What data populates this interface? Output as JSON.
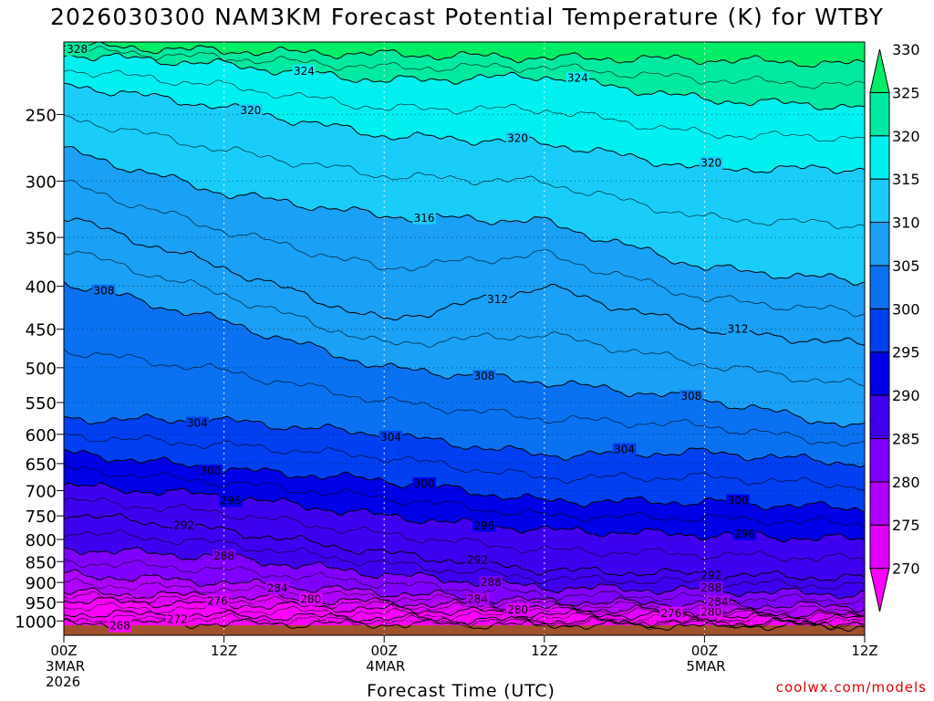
{
  "title": "2026030300 NAM3KM Forecast Potential Temperature (K) for WTBY",
  "credit": "coolwx.com/models",
  "chart_data": {
    "type": "heatmap",
    "title": "2026030300 NAM3KM Forecast Potential Temperature (K) for WTBY",
    "xlabel": "Forecast Time (UTC)",
    "ylabel": "",
    "x_range_hours": [
      0,
      60
    ],
    "x_ticks": [
      {
        "hour": 0,
        "lines": [
          "00Z",
          "3MAR",
          "2026"
        ]
      },
      {
        "hour": 12,
        "lines": [
          "12Z"
        ]
      },
      {
        "hour": 24,
        "lines": [
          "00Z",
          "4MAR"
        ]
      },
      {
        "hour": 36,
        "lines": [
          "12Z"
        ]
      },
      {
        "hour": 48,
        "lines": [
          "00Z",
          "5MAR"
        ]
      },
      {
        "hour": 60,
        "lines": [
          "12Z"
        ]
      }
    ],
    "y_pressure_range_hpa": [
      1040,
      205
    ],
    "y_ticks": [
      250,
      300,
      350,
      400,
      450,
      500,
      550,
      600,
      650,
      700,
      750,
      800,
      850,
      900,
      950,
      1000
    ],
    "colorbar": {
      "levels": [
        270,
        275,
        280,
        285,
        290,
        295,
        300,
        305,
        310,
        315,
        320,
        325,
        330
      ],
      "colors": [
        "#ff00ff",
        "#e000ff",
        "#b000ff",
        "#8000ff",
        "#4000f0",
        "#0000e6",
        "#0040f0",
        "#0a72f0",
        "#1aa0f4",
        "#19cdf8",
        "#00f0f0",
        "#00e9a0",
        "#00ee66"
      ]
    },
    "contour_interval": 4,
    "contours": [
      {
        "value": 268,
        "pressure": [
          1006,
          1007,
          1008,
          1010,
          1012,
          1014
        ],
        "labels": [
          [
            4.2,
            "268"
          ]
        ]
      },
      {
        "value": 272,
        "pressure": [
          980,
          985,
          992,
          1000,
          1005,
          1007
        ],
        "labels": [
          [
            8.5,
            "272"
          ]
        ]
      },
      {
        "value": 276,
        "pressure": [
          946,
          955,
          968,
          980,
          986,
          994
        ],
        "labels": [
          [
            11.5,
            "276"
          ],
          [
            45.5,
            "276"
          ]
        ]
      },
      {
        "value": 280,
        "pressure": [
          925,
          935,
          950,
          965,
          975,
          985
        ],
        "labels": [
          [
            18.5,
            "280"
          ],
          [
            34,
            "280"
          ],
          [
            48.5,
            "280"
          ]
        ]
      },
      {
        "value": 284,
        "pressure": [
          880,
          900,
          925,
          948,
          955,
          962
        ],
        "labels": [
          [
            16,
            "284"
          ],
          [
            31,
            "284"
          ],
          [
            49,
            "284"
          ]
        ]
      },
      {
        "value": 288,
        "pressure": [
          820,
          840,
          880,
          912,
          920,
          930
        ],
        "labels": [
          [
            12,
            "288"
          ],
          [
            32,
            "288"
          ],
          [
            48.5,
            "288"
          ]
        ]
      },
      {
        "value": 292,
        "pressure": [
          745,
          780,
          830,
          870,
          880,
          890
        ],
        "labels": [
          [
            9,
            "292"
          ],
          [
            31,
            "292"
          ],
          [
            48.5,
            "292"
          ]
        ]
      },
      {
        "value": 296,
        "pressure": [
          690,
          710,
          750,
          780,
          790,
          800
        ],
        "labels": [
          [
            12.5,
            "296"
          ],
          [
            31.5,
            "296"
          ],
          [
            51,
            "296"
          ]
        ]
      },
      {
        "value": 300,
        "pressure": [
          630,
          660,
          680,
          720,
          722,
          735
        ],
        "labels": [
          [
            11,
            "300"
          ],
          [
            27,
            "300"
          ],
          [
            50.5,
            "300"
          ]
        ]
      },
      {
        "value": 304,
        "pressure": [
          575,
          578,
          600,
          635,
          630,
          650
        ],
        "labels": [
          [
            10,
            "304"
          ],
          [
            24.5,
            "304"
          ],
          [
            42,
            "304"
          ]
        ]
      },
      {
        "value": 308,
        "pressure": [
          395,
          440,
          500,
          520,
          545,
          590
        ],
        "labels": [
          [
            3,
            "308"
          ],
          [
            31.5,
            "308"
          ],
          [
            47,
            "308"
          ]
        ]
      },
      {
        "value": 312,
        "pressure": [
          330,
          380,
          440,
          400,
          450,
          470
        ],
        "labels": [
          [
            32.5,
            "312"
          ],
          [
            50.5,
            "312"
          ]
        ]
      },
      {
        "value": 316,
        "pressure": [
          275,
          310,
          330,
          335,
          380,
          395
        ],
        "labels": [
          [
            27,
            "316"
          ]
        ]
      },
      {
        "value": 320,
        "pressure": [
          230,
          245,
          265,
          270,
          290,
          290
        ],
        "labels": [
          [
            14,
            "320"
          ],
          [
            34,
            "320"
          ],
          [
            48.5,
            "320"
          ]
        ]
      },
      {
        "value": 324,
        "pressure": [
          212,
          218,
          228,
          225,
          240,
          245
        ],
        "labels": [
          [
            18,
            "324"
          ],
          [
            38.5,
            "324"
          ]
        ]
      },
      {
        "value": 328,
        "pressure": [
          207,
          210,
          212,
          214,
          215,
          218
        ],
        "labels": [
          [
            1,
            "328"
          ]
        ]
      }
    ]
  }
}
